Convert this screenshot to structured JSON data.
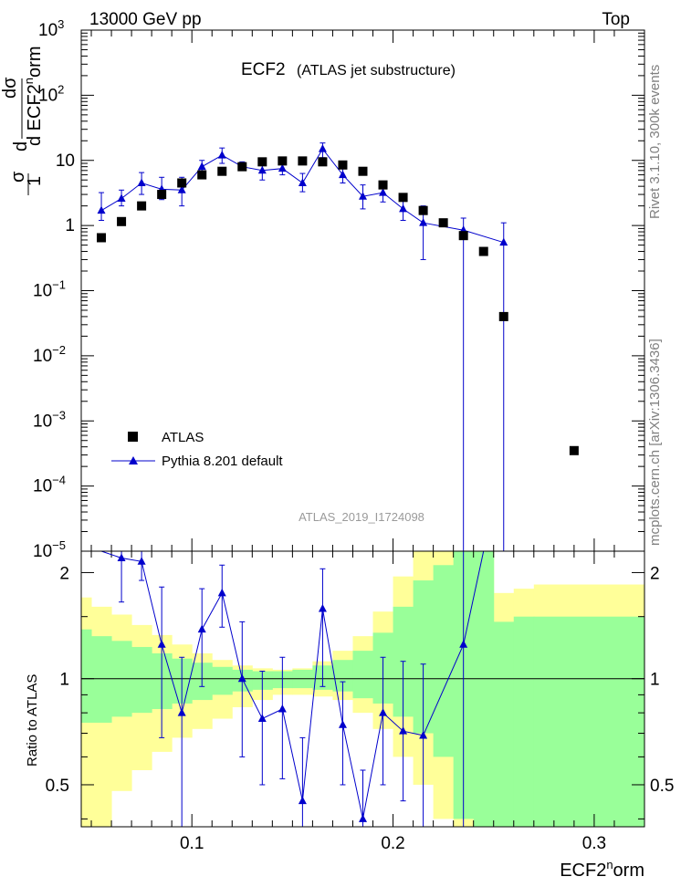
{
  "header": {
    "left": "13000 GeV pp",
    "right": "Top"
  },
  "side_labels": {
    "version": "Rivet 3.1.10,  300k events",
    "source": "mcplots.cern.ch [arXiv:1306.3436]"
  },
  "chart_data": [
    {
      "type": "scatter",
      "panel": "main",
      "title": "ECF2",
      "subtitle": "(ATLAS jet substructure)",
      "watermark": "ATLAS_2019_I1724098",
      "ylabel": "1/σ dσ/d ECF2^norm",
      "yscale": "log",
      "ylim": [
        1e-05,
        1000
      ],
      "xlim": [
        0.045,
        0.325
      ],
      "y_ticks": [
        {
          "value": 1e-05,
          "label": "10",
          "exp": "−5"
        },
        {
          "value": 0.0001,
          "label": "10",
          "exp": "−4"
        },
        {
          "value": 0.001,
          "label": "10",
          "exp": "−3"
        },
        {
          "value": 0.01,
          "label": "10",
          "exp": "−2"
        },
        {
          "value": 0.1,
          "label": "10",
          "exp": "−1"
        },
        {
          "value": 1,
          "label": "1",
          "exp": ""
        },
        {
          "value": 10,
          "label": "10",
          "exp": ""
        },
        {
          "value": 100,
          "label": "10",
          "exp": "2"
        },
        {
          "value": 1000,
          "label": "10",
          "exp": "3"
        }
      ],
      "legend_position": "bottom-left",
      "series": [
        {
          "name": "ATLAS",
          "marker": "square",
          "color": "#000000",
          "x": [
            0.055,
            0.065,
            0.075,
            0.085,
            0.095,
            0.105,
            0.115,
            0.125,
            0.135,
            0.145,
            0.155,
            0.165,
            0.175,
            0.185,
            0.195,
            0.205,
            0.215,
            0.225,
            0.235,
            0.245,
            0.255,
            0.29
          ],
          "y": [
            0.65,
            1.15,
            2.0,
            3.0,
            4.5,
            6.0,
            6.8,
            8.0,
            9.5,
            9.8,
            9.8,
            9.5,
            8.5,
            6.8,
            4.2,
            2.7,
            1.7,
            1.1,
            0.7,
            0.4,
            0.04,
            0.00035
          ]
        },
        {
          "name": "Pythia 8.201 default",
          "marker": "triangle",
          "color": "#0000cc",
          "x": [
            0.055,
            0.065,
            0.075,
            0.085,
            0.095,
            0.105,
            0.115,
            0.125,
            0.135,
            0.145,
            0.155,
            0.165,
            0.175,
            0.185,
            0.195,
            0.205,
            0.215,
            0.235,
            0.255
          ],
          "y": [
            1.7,
            2.6,
            4.5,
            3.6,
            3.5,
            8.0,
            12.0,
            8.0,
            7.0,
            7.5,
            4.5,
            15.0,
            6.0,
            2.8,
            3.2,
            1.8,
            1.1,
            0.85,
            0.55
          ],
          "err_lo": [
            1.2,
            2.0,
            3.0,
            2.5,
            2.0,
            6.5,
            9.0,
            7.0,
            5.0,
            6.0,
            3.3,
            11.0,
            4.5,
            1.8,
            2.3,
            1.2,
            0.3,
            0.0,
            0.0
          ],
          "err_hi": [
            3.2,
            3.5,
            6.5,
            5.5,
            5.5,
            10.0,
            15.5,
            9.5,
            9.0,
            9.5,
            6.3,
            18.5,
            8.5,
            4.2,
            4.5,
            3.0,
            2.0,
            1.3,
            1.1
          ]
        }
      ]
    },
    {
      "type": "line",
      "panel": "ratio",
      "ylabel": "Ratio to ATLAS",
      "xlabel": "ECF2^norm",
      "xlim": [
        0.045,
        0.325
      ],
      "ylim": [
        0.38,
        2.3
      ],
      "x_ticks": [
        0.1,
        0.2,
        0.3
      ],
      "y_ticks": [
        0.5,
        1,
        2
      ],
      "reference": 1,
      "bands": {
        "edges": [
          0.045,
          0.05,
          0.06,
          0.07,
          0.08,
          0.09,
          0.1,
          0.11,
          0.12,
          0.13,
          0.14,
          0.15,
          0.16,
          0.17,
          0.18,
          0.19,
          0.2,
          0.21,
          0.22,
          0.23,
          0.24,
          0.25,
          0.26,
          0.27,
          0.325
        ],
        "yellow_lo": [
          0.38,
          0.38,
          0.48,
          0.55,
          0.62,
          0.68,
          0.72,
          0.77,
          0.83,
          0.87,
          0.9,
          0.9,
          0.89,
          0.87,
          0.8,
          0.72,
          0.6,
          0.5,
          0.4,
          0.38,
          0.38,
          0.38,
          0.38,
          0.38
        ],
        "yellow_hi": [
          1.7,
          1.6,
          1.52,
          1.42,
          1.33,
          1.25,
          1.18,
          1.13,
          1.09,
          1.07,
          1.06,
          1.07,
          1.12,
          1.2,
          1.32,
          1.55,
          1.95,
          2.3,
          2.3,
          2.3,
          2.3,
          1.75,
          1.8,
          1.85
        ],
        "green_lo": [
          0.75,
          0.75,
          0.78,
          0.8,
          0.82,
          0.85,
          0.87,
          0.9,
          0.92,
          0.93,
          0.94,
          0.94,
          0.93,
          0.92,
          0.88,
          0.85,
          0.78,
          0.7,
          0.6,
          0.4,
          0.38,
          0.38,
          0.38,
          0.38
        ],
        "green_hi": [
          1.38,
          1.32,
          1.28,
          1.23,
          1.18,
          1.14,
          1.11,
          1.08,
          1.06,
          1.05,
          1.05,
          1.06,
          1.09,
          1.13,
          1.2,
          1.35,
          1.6,
          1.9,
          2.1,
          2.3,
          2.3,
          1.45,
          1.5,
          1.5
        ]
      },
      "series": [
        {
          "name": "Pythia 8.201 default",
          "color": "#0000cc",
          "x": [
            0.055,
            0.065,
            0.075,
            0.085,
            0.095,
            0.105,
            0.115,
            0.125,
            0.135,
            0.145,
            0.155,
            0.165,
            0.175,
            0.185,
            0.195,
            0.205,
            0.215,
            0.235,
            0.245
          ],
          "y": [
            2.35,
            2.2,
            2.15,
            1.25,
            0.8,
            1.38,
            1.75,
            1.0,
            0.77,
            0.82,
            0.45,
            1.58,
            0.74,
            0.4,
            0.8,
            0.71,
            0.69,
            1.25,
            2.5
          ],
          "err_lo": [
            2.35,
            1.65,
            1.9,
            0.68,
            0.35,
            0.95,
            1.4,
            0.6,
            0.5,
            0.52,
            0.38,
            0.95,
            0.5,
            0.35,
            0.5,
            0.45,
            0.38,
            0.38,
            2.3
          ],
          "err_hi": [
            2.35,
            2.3,
            2.3,
            1.82,
            1.15,
            1.8,
            2.1,
            1.45,
            1.05,
            1.15,
            0.68,
            2.05,
            0.98,
            0.55,
            1.15,
            1.12,
            1.1,
            2.3,
            2.3
          ]
        }
      ]
    }
  ]
}
